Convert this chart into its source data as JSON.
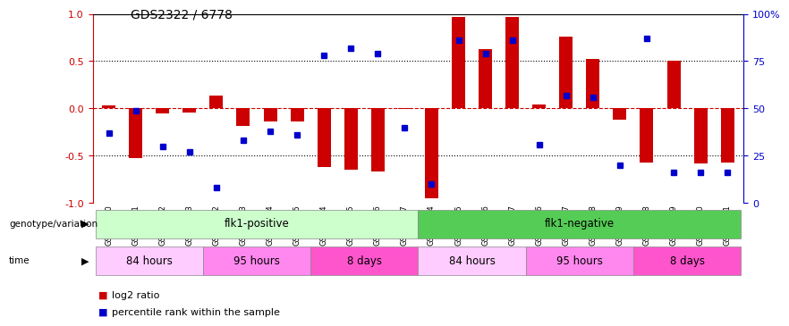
{
  "title": "GDS2322 / 6778",
  "samples": [
    "GSM86370",
    "GSM86371",
    "GSM86372",
    "GSM86373",
    "GSM86362",
    "GSM86363",
    "GSM86364",
    "GSM86365",
    "GSM86354",
    "GSM86355",
    "GSM86356",
    "GSM86357",
    "GSM86374",
    "GSM86375",
    "GSM86376",
    "GSM86377",
    "GSM86366",
    "GSM86367",
    "GSM86368",
    "GSM86369",
    "GSM86358",
    "GSM86359",
    "GSM86360",
    "GSM86361"
  ],
  "log2_ratio": [
    0.03,
    -0.52,
    -0.05,
    -0.04,
    0.14,
    -0.18,
    -0.14,
    -0.14,
    -0.62,
    -0.65,
    -0.67,
    -0.01,
    -0.95,
    0.97,
    0.63,
    0.97,
    0.04,
    0.76,
    0.52,
    -0.12,
    -0.57,
    0.5,
    -0.58,
    -0.57
  ],
  "percentile": [
    0.37,
    0.49,
    0.3,
    0.27,
    0.08,
    0.33,
    0.38,
    0.36,
    0.78,
    0.82,
    0.79,
    0.4,
    0.1,
    0.86,
    0.79,
    0.86,
    0.31,
    0.57,
    0.56,
    0.2,
    0.87,
    0.16,
    0.16,
    0.16
  ],
  "bar_color": "#cc0000",
  "dot_color": "#0000cc",
  "bg_color": "#ffffff",
  "left_axis_color": "#cc0000",
  "right_axis_color": "#0000cc",
  "hline_color": "#cc0000",
  "dotline_color": "#000000",
  "genotype_groups": [
    {
      "label": "flk1-positive",
      "start": 0,
      "end": 11,
      "color": "#ccffcc"
    },
    {
      "label": "flk1-negative",
      "start": 12,
      "end": 23,
      "color": "#55cc55"
    }
  ],
  "time_groups": [
    {
      "label": "84 hours",
      "start": 0,
      "end": 3,
      "color": "#ffccff"
    },
    {
      "label": "95 hours",
      "start": 4,
      "end": 7,
      "color": "#ff88ee"
    },
    {
      "label": "8 days",
      "start": 8,
      "end": 11,
      "color": "#ff55cc"
    },
    {
      "label": "84 hours",
      "start": 12,
      "end": 15,
      "color": "#ffccff"
    },
    {
      "label": "95 hours",
      "start": 16,
      "end": 19,
      "color": "#ff88ee"
    },
    {
      "label": "8 days",
      "start": 20,
      "end": 23,
      "color": "#ff55cc"
    }
  ],
  "legend_items": [
    {
      "label": "log2 ratio",
      "color": "#cc0000"
    },
    {
      "label": "percentile rank within the sample",
      "color": "#0000cc"
    }
  ],
  "ylim": [
    -1.0,
    1.0
  ],
  "yticks_left": [
    -1.0,
    -0.5,
    0.0,
    0.5,
    1.0
  ],
  "yticks_right": [
    0,
    25,
    50,
    75,
    100
  ],
  "bar_width": 0.5
}
